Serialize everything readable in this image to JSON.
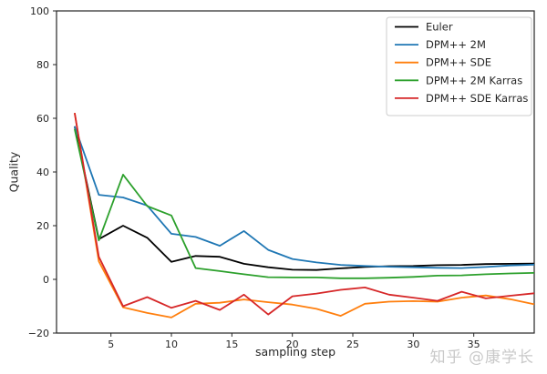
{
  "figure": {
    "watermark": "知乎 @康学长",
    "background": "#ffffff"
  },
  "chart_data": {
    "type": "line",
    "title": "",
    "xlabel": "sampling step",
    "ylabel": "Quality",
    "xlim": [
      0.5,
      40
    ],
    "ylim": [
      -20,
      100
    ],
    "xticks": [
      5,
      10,
      15,
      20,
      25,
      30,
      35
    ],
    "yticks": [
      -20,
      0,
      20,
      40,
      60,
      80,
      100
    ],
    "grid": false,
    "legend_position": "upper right",
    "x": [
      2,
      4,
      6,
      8,
      10,
      12,
      14,
      16,
      18,
      20,
      22,
      24,
      26,
      28,
      30,
      32,
      34,
      36,
      38,
      40
    ],
    "series": [
      {
        "name": "Euler",
        "color": "#000000",
        "values": [
          57,
          15,
          20,
          15.5,
          6.5,
          8.7,
          8.4,
          5.8,
          4.5,
          3.6,
          3.5,
          4.1,
          4.6,
          4.9,
          5.0,
          5.3,
          5.4,
          5.7,
          5.8,
          5.9
        ]
      },
      {
        "name": "DPM++ 2M",
        "color": "#1f77b4",
        "values": [
          57,
          31.5,
          30.5,
          27.5,
          17,
          15.8,
          12.5,
          18,
          11,
          7.6,
          6.3,
          5.4,
          5.0,
          4.7,
          4.5,
          4.3,
          4.2,
          4.6,
          5.2,
          5.5
        ]
      },
      {
        "name": "DPM++ SDE",
        "color": "#ff7f0e",
        "values": [
          62,
          6.7,
          -10.4,
          -12.5,
          -14.2,
          -9.1,
          -8.7,
          -7.5,
          -8.5,
          -9.4,
          -11.0,
          -13.6,
          -9.1,
          -8.3,
          -8.1,
          -8.3,
          -6.8,
          -6.0,
          -7.4,
          -9.3
        ]
      },
      {
        "name": "DPM++ 2M Karras",
        "color": "#2ca02c",
        "values": [
          56,
          14.5,
          39,
          27.3,
          23.8,
          4.2,
          3.1,
          1.9,
          0.8,
          0.7,
          0.7,
          0.4,
          0.4,
          0.6,
          0.9,
          1.4,
          1.5,
          1.9,
          2.2,
          2.4
        ]
      },
      {
        "name": "DPM++ SDE Karras",
        "color": "#d62728",
        "values": [
          62,
          8.4,
          -10.0,
          -6.6,
          -10.6,
          -8.0,
          -11.4,
          -5.7,
          -13.1,
          -6.3,
          -5.3,
          -3.9,
          -3.0,
          -5.7,
          -6.8,
          -8.0,
          -4.6,
          -7.1,
          -6.1,
          -5.2
        ]
      }
    ]
  }
}
